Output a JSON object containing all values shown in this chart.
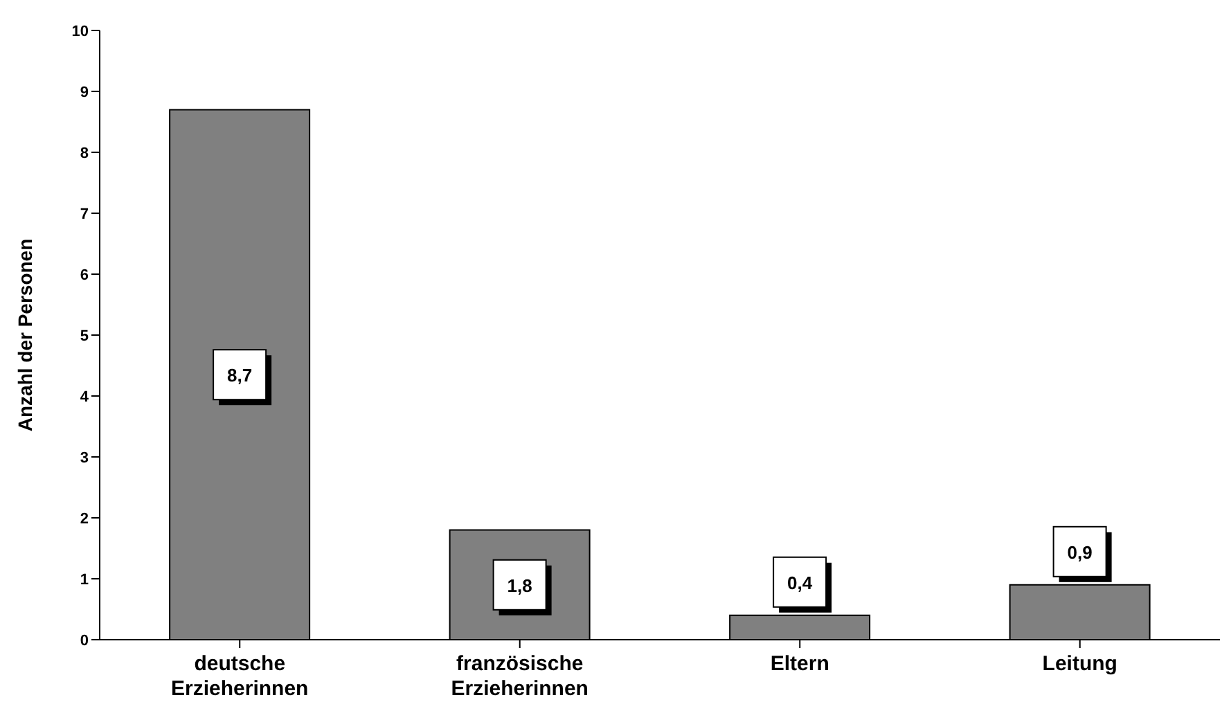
{
  "chart_data": {
    "type": "bar",
    "ylabel": "Anzahl der Personen",
    "categories": [
      "deutsche Erzieherinnen",
      "französische Erzieherinnen",
      "Eltern",
      "Leitung"
    ],
    "values": [
      8.7,
      1.8,
      0.4,
      0.9
    ],
    "value_labels": [
      "8,7",
      "1,8",
      "0,4",
      "0,9"
    ],
    "color": "#808080",
    "ylim": [
      0,
      10
    ],
    "yticks": [
      0,
      1,
      2,
      3,
      4,
      5,
      6,
      7,
      8,
      9,
      10
    ],
    "grid": false,
    "legend": false
  }
}
